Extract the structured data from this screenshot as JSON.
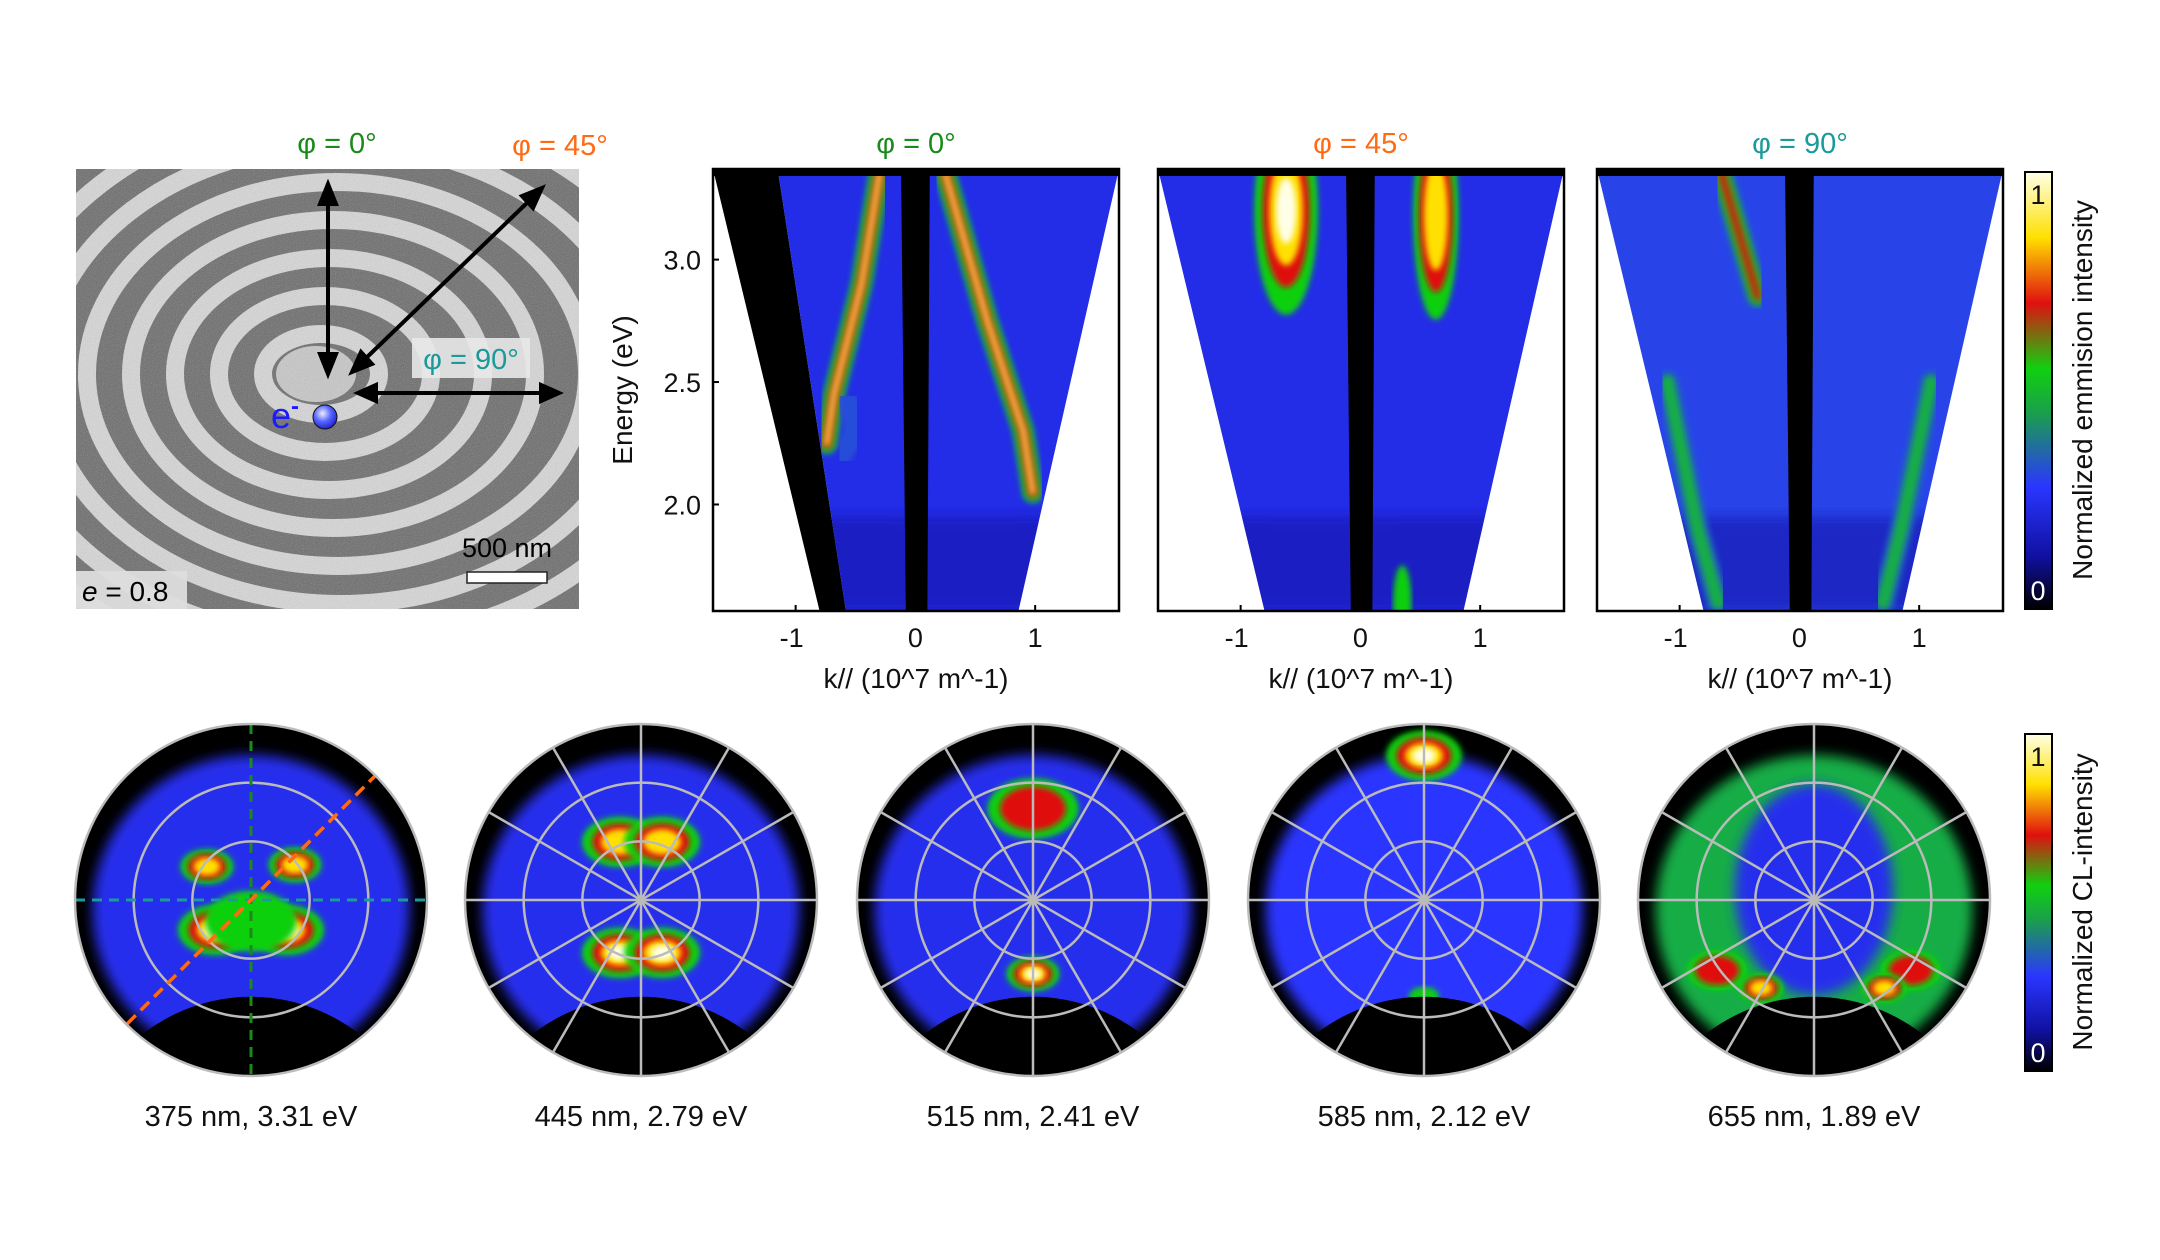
{
  "colors": {
    "phi0": "#1a8a1a",
    "phi45": "#ff6a13",
    "phi90": "#1a9a9a",
    "electron": "#1a1aff"
  },
  "sem": {
    "phi0_label": "φ = 0°",
    "phi45_label": "φ = 45°",
    "phi90_label": "φ = 90°",
    "electron_label": "e",
    "electron_sup": "-",
    "scale_label": "500 nm",
    "ecc_symbol": "e",
    "ecc_value": " = 0.8"
  },
  "chart_data": [
    {
      "type": "heatmap",
      "title": "φ = 0°",
      "title_color": "#1a8a1a",
      "xlabel": "k// (10^7 m^-1)",
      "ylabel": "Energy (eV)",
      "xlim": [
        -1.69,
        1.7
      ],
      "ylim": [
        1.565,
        3.37
      ],
      "xticks": [
        "-1",
        "0",
        "1"
      ],
      "xtick_values": [
        -1,
        0,
        1
      ],
      "yticks": [
        "3.0",
        "2.5",
        "2.0"
      ],
      "ytick_values": [
        3.0,
        2.5,
        2.0
      ],
      "features": [
        {
          "kind": "band",
          "level": 1.0,
          "points": [
            [
              -0.3,
              3.35
            ],
            [
              -0.45,
              2.9
            ],
            [
              -0.68,
              2.45
            ],
            [
              -0.74,
              2.25
            ]
          ]
        },
        {
          "kind": "band",
          "level": 1.0,
          "points": [
            [
              0.25,
              3.35
            ],
            [
              0.6,
              2.75
            ],
            [
              0.9,
              2.3
            ],
            [
              0.98,
              2.05
            ]
          ]
        },
        {
          "kind": "band",
          "level": 0.5,
          "points": [
            [
              -0.56,
              2.42
            ],
            [
              -0.5,
              2.3
            ],
            [
              -0.62,
              2.2
            ]
          ]
        }
      ]
    },
    {
      "type": "heatmap",
      "title": "φ = 45°",
      "title_color": "#ff6a13",
      "xlabel": "k// (10^7 m^-1)",
      "xlim": [
        -1.69,
        1.7
      ],
      "ylim": [
        1.565,
        3.37
      ],
      "xticks": [
        "-1",
        "0",
        "1"
      ],
      "xtick_values": [
        -1,
        0,
        1
      ],
      "features": [
        {
          "kind": "spot",
          "level": 1.0,
          "points": [
            [
              -0.62,
              3.2
            ]
          ],
          "size": [
            0.14,
            0.14
          ]
        },
        {
          "kind": "spot",
          "level": 0.85,
          "points": [
            [
              0.63,
              3.18
            ]
          ],
          "size": [
            0.1,
            0.14
          ]
        },
        {
          "kind": "band",
          "level": 0.35,
          "points": [
            [
              -0.5,
              3.0
            ],
            [
              -0.45,
              2.8
            ]
          ]
        },
        {
          "kind": "spot",
          "level": 0.6,
          "points": [
            [
              0.35,
              1.6
            ]
          ],
          "size": [
            0.04,
            0.05
          ]
        }
      ]
    },
    {
      "type": "heatmap",
      "title": "φ = 90°",
      "title_color": "#1a9a9a",
      "xlabel": "k// (10^7 m^-1)",
      "xlim": [
        -1.69,
        1.7
      ],
      "ylim": [
        1.565,
        3.37
      ],
      "xticks": [
        "-1",
        "0",
        "1"
      ],
      "xtick_values": [
        -1,
        0,
        1
      ],
      "features": [
        {
          "kind": "band",
          "level": 0.7,
          "points": [
            [
              -0.65,
              3.35
            ],
            [
              -0.5,
              3.1
            ],
            [
              -0.35,
              2.85
            ]
          ]
        },
        {
          "kind": "band",
          "level": 0.35,
          "points": [
            [
              -0.3,
              2.8
            ],
            [
              -0.15,
              2.45
            ]
          ]
        },
        {
          "kind": "band",
          "level": 0.35,
          "points": [
            [
              0.35,
              3.35
            ],
            [
              0.2,
              2.9
            ]
          ]
        },
        {
          "kind": "band",
          "level": 0.55,
          "points": [
            [
              -1.1,
              2.5
            ],
            [
              -0.85,
              1.9
            ],
            [
              -0.68,
              1.6
            ]
          ]
        },
        {
          "kind": "band",
          "level": 0.55,
          "points": [
            [
              1.1,
              2.5
            ],
            [
              0.85,
              1.9
            ],
            [
              0.7,
              1.6
            ]
          ]
        }
      ]
    }
  ],
  "colorbar_top": {
    "label": "Normalized emmision intensity",
    "max": "1",
    "min": "0"
  },
  "colorbar_bottom": {
    "label": "Normalized CL-intensity",
    "max": "1",
    "min": "0"
  },
  "polar_maps": [
    {
      "caption": "375 nm, 3.31 eV",
      "grid": "dashed-cuts",
      "background_level": 0.25,
      "spots": [
        [
          -0.25,
          -0.19,
          0.07,
          0.8
        ],
        [
          0.25,
          -0.2,
          0.07,
          0.85
        ],
        [
          -0.2,
          0.17,
          0.1,
          1.0
        ],
        [
          0.2,
          0.17,
          0.1,
          0.95
        ],
        [
          0,
          0.12,
          0.12,
          0.6
        ]
      ]
    },
    {
      "caption": "445 nm, 2.79 eV",
      "grid": "spokes",
      "background_level": 0.25,
      "spots": [
        [
          -0.12,
          -0.33,
          0.1,
          0.85
        ],
        [
          0.12,
          -0.33,
          0.1,
          0.85
        ],
        [
          -0.12,
          0.3,
          0.1,
          1.0
        ],
        [
          0.12,
          0.3,
          0.1,
          1.0
        ]
      ]
    },
    {
      "caption": "515 nm, 2.41 eV",
      "grid": "spokes",
      "background_level": 0.25,
      "spots": [
        [
          0,
          -0.52,
          0.12,
          0.65
        ],
        [
          0,
          0.42,
          0.07,
          1.0
        ]
      ]
    },
    {
      "caption": "585 nm, 2.12 eV",
      "grid": "spokes",
      "background_level": 0.28,
      "spots": [
        [
          0,
          -0.82,
          0.1,
          1.0
        ],
        [
          0,
          0.55,
          0.04,
          0.6
        ]
      ]
    },
    {
      "caption": "655 nm, 1.89 eV",
      "grid": "spokes",
      "background_level": 0.45,
      "spots": [
        [
          -0.55,
          0.4,
          0.08,
          0.75
        ],
        [
          0.55,
          0.4,
          0.08,
          0.75
        ],
        [
          -0.3,
          0.5,
          0.06,
          0.8
        ],
        [
          0.4,
          0.5,
          0.06,
          0.8
        ]
      ]
    }
  ]
}
